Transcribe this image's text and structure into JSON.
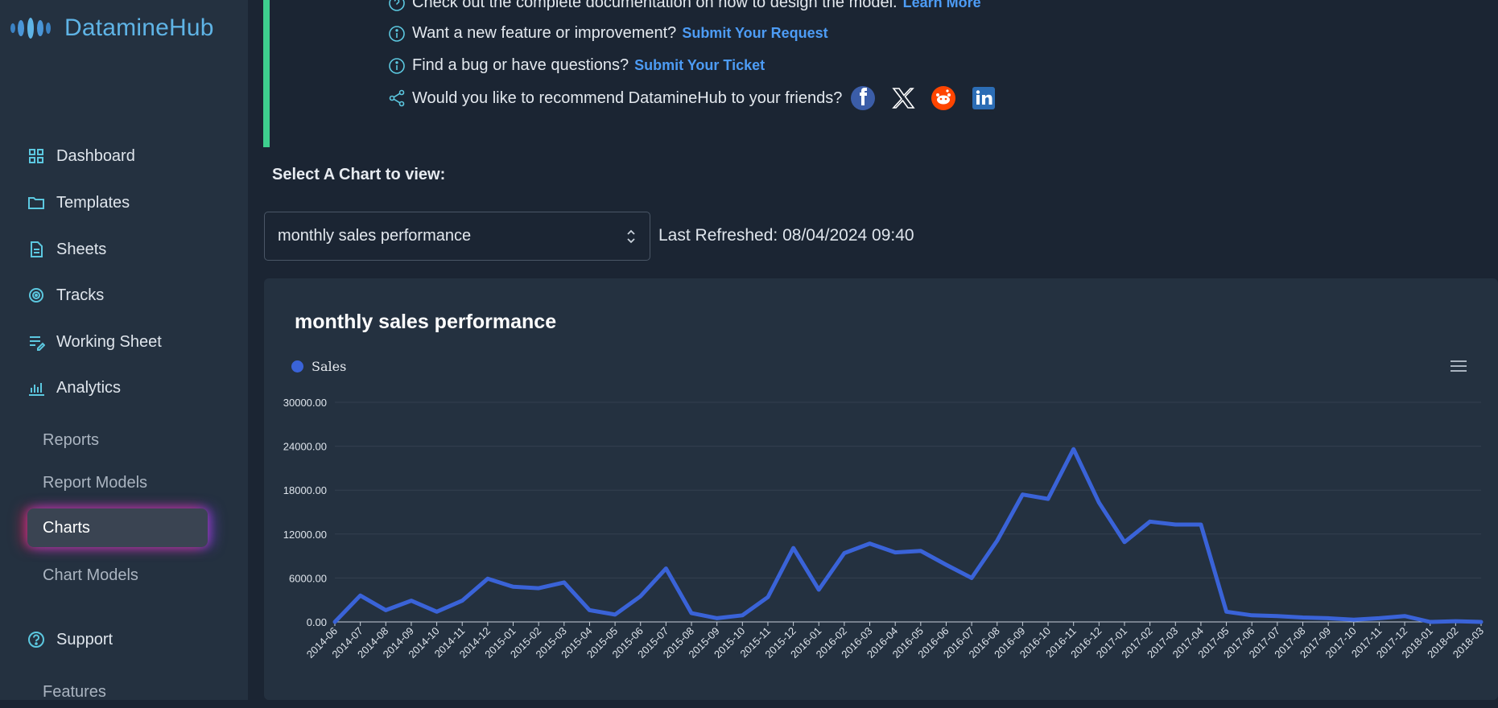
{
  "sidebar": {
    "brand": "DatamineHub",
    "items": [
      {
        "label": "Dashboard",
        "icon": "grid-icon"
      },
      {
        "label": "Templates",
        "icon": "folder-icon"
      },
      {
        "label": "Sheets",
        "icon": "document-icon"
      },
      {
        "label": "Tracks",
        "icon": "target-icon"
      },
      {
        "label": "Working Sheet",
        "icon": "list-edit-icon"
      },
      {
        "label": "Analytics",
        "icon": "bar-chart-icon"
      }
    ],
    "analytics_sub": [
      "Reports",
      "Report Models",
      "Charts",
      "Chart Models"
    ],
    "active_sub": "Charts",
    "support": "Support",
    "support_sub": [
      "Features"
    ]
  },
  "notice": {
    "line0_text": "Check out the complete documentation on how to design the model.",
    "line0_link": "Learn More",
    "line1_text": "Want a new feature or improvement?",
    "line1_link": "Submit Your Request",
    "line2_text": "Find a bug or have questions?",
    "line2_link": "Submit Your Ticket",
    "line3_text": "Would you like to recommend DatamineHub to your friends?",
    "social": [
      "facebook-icon",
      "x-icon",
      "reddit-icon",
      "linkedin-icon"
    ]
  },
  "selector": {
    "label": "Select A Chart to view:",
    "value": "monthly sales performance",
    "last_refreshed": "Last Refreshed: 08/04/2024 09:40"
  },
  "colors": {
    "accent_green": "#3ecf8e",
    "link": "#4d9cf5",
    "series": "#3a63d8",
    "sidebar_bg": "#243140",
    "page_bg": "#1b2533"
  },
  "chart_data": {
    "type": "line",
    "title": "monthly sales performance",
    "legend": "top-left",
    "grid": true,
    "ylim": [
      0,
      30000
    ],
    "yticks": [
      "0.00",
      "6000.00",
      "12000.00",
      "18000.00",
      "24000.00",
      "30000.00"
    ],
    "x": [
      "2014-06",
      "2014-07",
      "2014-08",
      "2014-09",
      "2014-10",
      "2014-11",
      "2014-12",
      "2015-01",
      "2015-02",
      "2015-03",
      "2015-04",
      "2015-05",
      "2015-06",
      "2015-07",
      "2015-08",
      "2015-09",
      "2015-10",
      "2015-11",
      "2015-12",
      "2016-01",
      "2016-02",
      "2016-03",
      "2016-04",
      "2016-05",
      "2016-06",
      "2016-07",
      "2016-08",
      "2016-09",
      "2016-10",
      "2016-11",
      "2016-12",
      "2017-01",
      "2017-02",
      "2017-03",
      "2017-04",
      "2017-05",
      "2017-06",
      "2017-07",
      "2017-08",
      "2017-09",
      "2017-10",
      "2017-11",
      "2017-12",
      "2018-01",
      "2018-02",
      "2018-03"
    ],
    "series": [
      {
        "name": "Sales",
        "values": [
          0,
          3600,
          1600,
          2900,
          1400,
          2900,
          5900,
          4800,
          4600,
          5400,
          1600,
          1000,
          3500,
          7300,
          1200,
          500,
          900,
          3400,
          10100,
          4400,
          9400,
          10700,
          9500,
          9700,
          7800,
          6000,
          11100,
          17400,
          16800,
          23600,
          16300,
          10900,
          13700,
          13300,
          13300,
          1400,
          900,
          800,
          600,
          500,
          300,
          500,
          800,
          0,
          100,
          0
        ]
      }
    ]
  }
}
